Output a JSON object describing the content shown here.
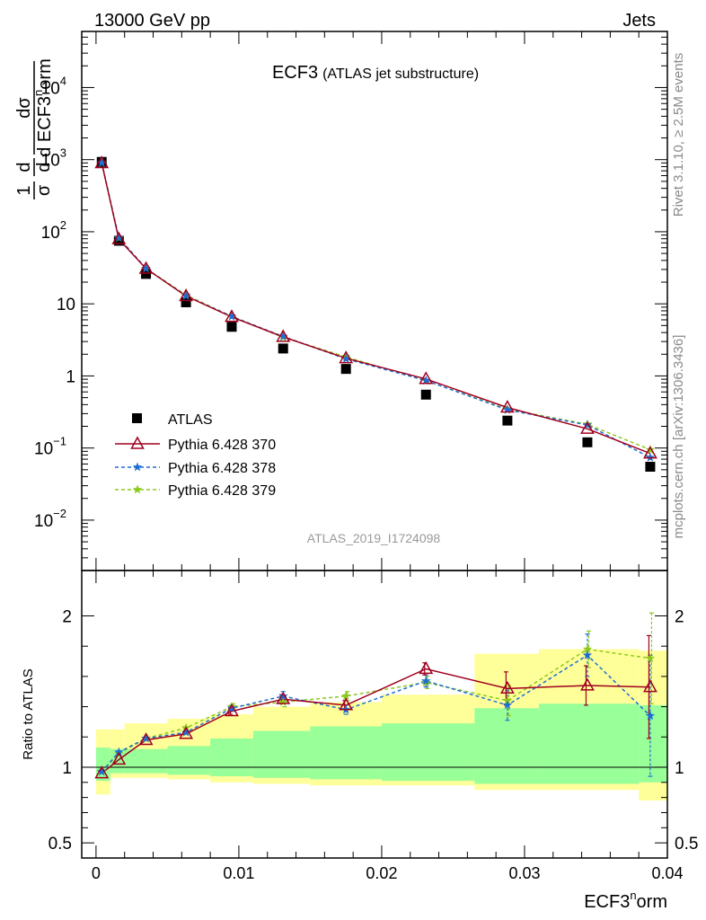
{
  "header": {
    "left": "13000 GeV pp",
    "right": "Jets"
  },
  "main_panel": {
    "title_main": "ECF3",
    "title_sub": "(ATLAS jet substructure)",
    "watermark": "ATLAS_2019_I1724098",
    "ylabel_frac1_num": "1",
    "ylabel_frac1_den": "σ",
    "ylabel_frac2_num": "d",
    "ylabel_frac2_den": "d",
    "ylabel_frac3_num": "dσ",
    "ylabel_frac3_den": "d ECF3",
    "ylabel_frac3_sup": "n",
    "ylabel_frac3_tail": "orm"
  },
  "side_text": {
    "top": "Rivet 3.1.10, ≥ 2.5M events",
    "bottom": "mcplots.cern.ch [arXiv:1306.3436]"
  },
  "ratio_panel": {
    "ylabel": "Ratio to ATLAS"
  },
  "x_axis": {
    "label_main": "ECF3",
    "label_sup": "n",
    "label_tail": "orm"
  },
  "legend": {
    "items": [
      "ATLAS",
      "Pythia 6.428 370",
      "Pythia 6.428 378",
      "Pythia 6.428 379"
    ]
  },
  "colors": {
    "data": "#000000",
    "p370": "#a0001e",
    "p378": "#1e6ed2",
    "p379": "#8cc81e",
    "band_inner": "#99ff99",
    "band_outer": "#ffff99"
  },
  "chart_data": {
    "type": "scatter",
    "xlim": [
      -0.001,
      0.04
    ],
    "main_ylim": [
      0.002,
      60000
    ],
    "main_yscale": "log",
    "ratio_ylim": [
      0.4,
      2.3
    ],
    "x_ticks": [
      {
        "v": 0,
        "label": "0"
      },
      {
        "v": 0.01,
        "label": "0.01"
      },
      {
        "v": 0.02,
        "label": "0.02"
      },
      {
        "v": 0.03,
        "label": "0.03"
      },
      {
        "v": 0.04,
        "label": "0.04"
      }
    ],
    "main_y_ticks": [
      {
        "v": 0.01,
        "base": "10",
        "exp": "−2"
      },
      {
        "v": 0.1,
        "base": "10",
        "exp": "−1"
      },
      {
        "v": 1,
        "base": "1",
        "exp": ""
      },
      {
        "v": 10,
        "base": "10",
        "exp": ""
      },
      {
        "v": 100,
        "base": "10",
        "exp": "2"
      },
      {
        "v": 1000,
        "base": "10",
        "exp": "3"
      },
      {
        "v": 10000,
        "base": "10",
        "exp": "4"
      }
    ],
    "ratio_y_ticks": [
      {
        "v": 0.5,
        "label": "0.5"
      },
      {
        "v": 1,
        "label": "1"
      },
      {
        "v": 2,
        "label": "2"
      }
    ],
    "bins": [
      [
        0.0,
        0.001
      ],
      [
        0.001,
        0.002
      ],
      [
        0.002,
        0.005
      ],
      [
        0.005,
        0.008
      ],
      [
        0.008,
        0.011
      ],
      [
        0.011,
        0.015
      ],
      [
        0.015,
        0.02
      ],
      [
        0.02,
        0.0265
      ],
      [
        0.0265,
        0.031
      ],
      [
        0.031,
        0.038
      ],
      [
        0.038,
        0.04
      ]
    ],
    "x": [
      0.0004,
      0.0016,
      0.0035,
      0.0063,
      0.0095,
      0.0131,
      0.0175,
      0.0231,
      0.0288,
      0.0344,
      0.0388
    ],
    "data": [
      930,
      75,
      26,
      10.5,
      4.8,
      2.4,
      1.25,
      0.55,
      0.24,
      0.12,
      0.055
    ],
    "band_inner": [
      [
        0.91,
        1.13
      ],
      [
        0.96,
        1.12
      ],
      [
        0.96,
        1.12
      ],
      [
        0.95,
        1.14
      ],
      [
        0.94,
        1.19
      ],
      [
        0.93,
        1.24
      ],
      [
        0.92,
        1.27
      ],
      [
        0.91,
        1.29
      ],
      [
        0.89,
        1.39
      ],
      [
        0.89,
        1.42
      ],
      [
        0.9,
        1.41
      ]
    ],
    "band_outer": [
      [
        0.82,
        1.25
      ],
      [
        0.93,
        1.25
      ],
      [
        0.93,
        1.29
      ],
      [
        0.92,
        1.32
      ],
      [
        0.9,
        1.35
      ],
      [
        0.89,
        1.4
      ],
      [
        0.88,
        1.43
      ],
      [
        0.88,
        1.48
      ],
      [
        0.85,
        1.75
      ],
      [
        0.85,
        1.78
      ],
      [
        0.78,
        1.77
      ]
    ],
    "series": [
      {
        "name": "Pythia 6.428 370",
        "style": "solid-triangle",
        "ratio": [
          0.96,
          1.05,
          1.18,
          1.22,
          1.37,
          1.45,
          1.41,
          1.65,
          1.52,
          1.54,
          1.53
        ],
        "ratio_err": [
          0.01,
          0.01,
          0.01,
          0.01,
          0.02,
          0.03,
          0.03,
          0.04,
          0.11,
          0.13,
          0.34
        ]
      },
      {
        "name": "Pythia 6.428 378",
        "style": "dashed-star",
        "ratio": [
          0.97,
          1.1,
          1.19,
          1.23,
          1.39,
          1.47,
          1.38,
          1.57,
          1.41,
          1.74,
          1.34
        ],
        "ratio_err": [
          0.01,
          0.01,
          0.01,
          0.01,
          0.02,
          0.03,
          0.03,
          0.04,
          0.1,
          0.14,
          0.4
        ]
      },
      {
        "name": "Pythia 6.428 379",
        "style": "dashed-star",
        "ratio": [
          0.97,
          1.09,
          1.19,
          1.26,
          1.4,
          1.43,
          1.47,
          1.56,
          1.44,
          1.78,
          1.72
        ],
        "ratio_err": [
          0.01,
          0.01,
          0.01,
          0.01,
          0.02,
          0.03,
          0.03,
          0.04,
          0.1,
          0.12,
          0.3
        ]
      }
    ]
  }
}
